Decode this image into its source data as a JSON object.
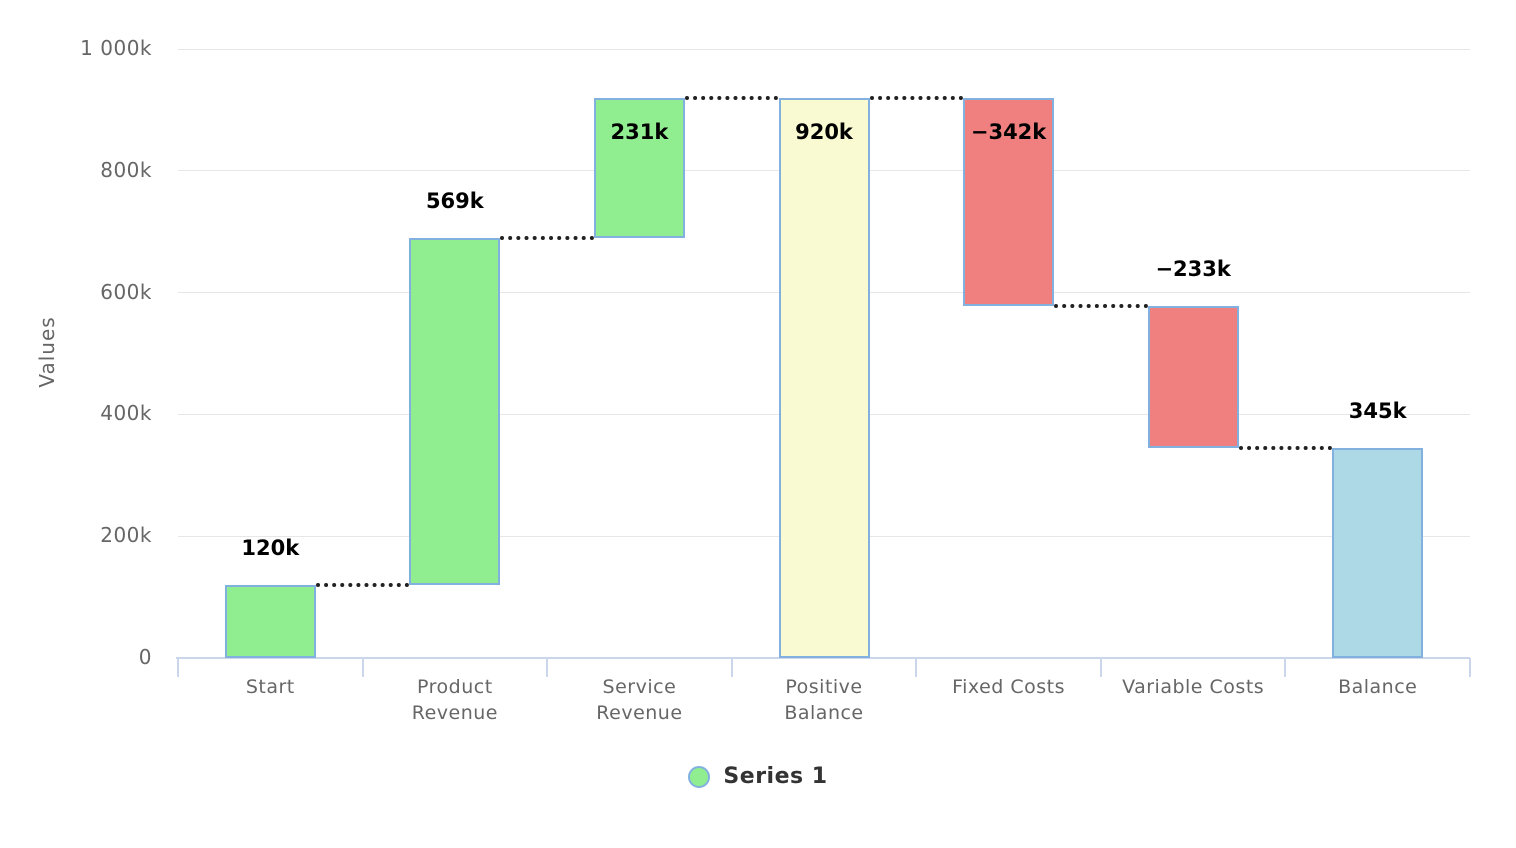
{
  "chart_data": {
    "type": "bar",
    "subtype": "waterfall",
    "title": "",
    "xlabel": "",
    "ylabel": "Values",
    "ylim": [
      0,
      1000
    ],
    "units_note": "axis values shown in thousands (k)",
    "grid": true,
    "legend_position": "bottom-center",
    "connector_style": "dotted",
    "categories": [
      "Start",
      "Product Revenue",
      "Service Revenue",
      "Positive Balance",
      "Fixed Costs",
      "Variable Costs",
      "Balance"
    ],
    "y_ticks": [
      {
        "v": 0,
        "label": "0"
      },
      {
        "v": 200,
        "label": "200k"
      },
      {
        "v": 400,
        "label": "400k"
      },
      {
        "v": 600,
        "label": "600k"
      },
      {
        "v": 800,
        "label": "800k"
      },
      {
        "v": 1000,
        "label": "1 000k"
      }
    ],
    "series": [
      {
        "name": "Series 1"
      }
    ],
    "points": [
      {
        "category": "Start",
        "label": "120k",
        "value": 120,
        "start": 0,
        "end": 120,
        "role": "positive",
        "label_inside": false,
        "label_lines": [
          "Start"
        ]
      },
      {
        "category": "Product Revenue",
        "label": "569k",
        "value": 569,
        "start": 120,
        "end": 689,
        "role": "positive",
        "label_inside": false,
        "label_lines": [
          "Product",
          "Revenue"
        ]
      },
      {
        "category": "Service Revenue",
        "label": "231k",
        "value": 231,
        "start": 689,
        "end": 920,
        "role": "positive",
        "label_inside": true,
        "label_lines": [
          "Service",
          "Revenue"
        ]
      },
      {
        "category": "Positive Balance",
        "label": "920k",
        "value": 920,
        "start": 0,
        "end": 920,
        "role": "subtotal",
        "label_inside": true,
        "label_lines": [
          "Positive",
          "Balance"
        ]
      },
      {
        "category": "Fixed Costs",
        "label": "−342k",
        "value": -342,
        "start": 920,
        "end": 578,
        "role": "negative",
        "label_inside": true,
        "label_lines": [
          "Fixed Costs"
        ]
      },
      {
        "category": "Variable Costs",
        "label": "−233k",
        "value": -233,
        "start": 578,
        "end": 345,
        "role": "negative",
        "label_inside": false,
        "label_lines": [
          "Variable Costs"
        ]
      },
      {
        "category": "Balance",
        "label": "345k",
        "value": 345,
        "start": 0,
        "end": 345,
        "role": "total",
        "label_inside": false,
        "label_lines": [
          "Balance"
        ]
      }
    ],
    "legend": {
      "label": "Series 1",
      "marker_role": "positive"
    },
    "colors": {
      "positive": "#90ee90",
      "negative": "#f08080",
      "subtotal": "#fafad2",
      "total": "#add8e6",
      "bar_border": "#82b1e0",
      "connector": "#222222",
      "gridline": "#e7e7e7",
      "axis_line": "#ccd6ea",
      "axis_text": "#666666",
      "data_label": "#000000",
      "legend_text": "#333333"
    }
  }
}
